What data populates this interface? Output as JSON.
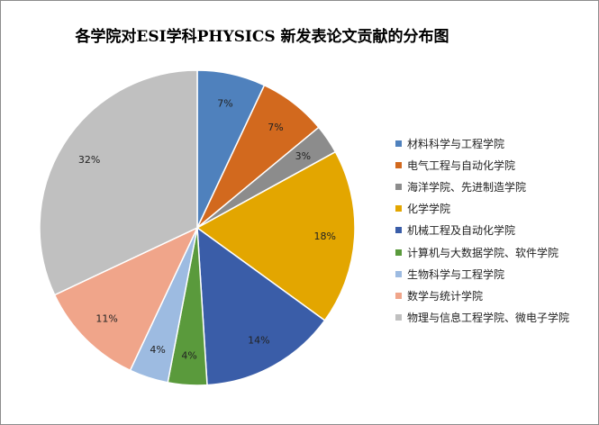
{
  "chart_data": {
    "type": "pie",
    "title": "各学院对ESI学科PHYSICS 新发表论文贡献的分布图",
    "start_angle_deg": 0,
    "direction": "clockwise",
    "legend_position": "right",
    "slices": [
      {
        "name": "材料科学与工程学院",
        "value": 7,
        "label": "7%",
        "color": "#4f81bd"
      },
      {
        "name": "电气工程与自动化学院",
        "value": 7,
        "label": "7%",
        "color": "#d2691e"
      },
      {
        "name": "海洋学院、先进制造学院",
        "value": 3,
        "label": "3%",
        "color": "#8c8c8c"
      },
      {
        "name": "化学学院",
        "value": 18,
        "label": "18%",
        "color": "#e3a600"
      },
      {
        "name": "机械工程及自动化学院",
        "value": 14,
        "label": "14%",
        "color": "#3a5da8"
      },
      {
        "name": "计算机与大数据学院、软件学院",
        "value": 4,
        "label": "4%",
        "color": "#5a9a3c"
      },
      {
        "name": "生物科学与工程学院",
        "value": 4,
        "label": "4%",
        "color": "#9dbbe1"
      },
      {
        "name": "数学与统计学院",
        "value": 11,
        "label": "11%",
        "color": "#f0a58a"
      },
      {
        "name": "物理与信息工程学院、微电子学院",
        "value": 32,
        "label": "32%",
        "color": "#c0c0c0"
      }
    ]
  }
}
